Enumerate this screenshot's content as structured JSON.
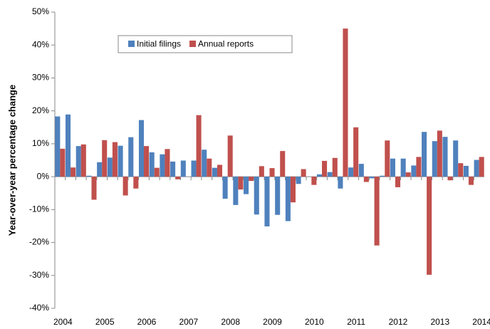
{
  "chart_data": {
    "type": "bar",
    "y_label": "Year-over-year percentage change",
    "categories": [
      "2004",
      null,
      null,
      null,
      "2005",
      null,
      null,
      null,
      "2006",
      null,
      null,
      null,
      "2007",
      null,
      null,
      null,
      "2008",
      null,
      null,
      null,
      "2009",
      null,
      null,
      null,
      "2010",
      null,
      null,
      null,
      "2011",
      null,
      null,
      null,
      "2012",
      null,
      null,
      null,
      "2013",
      null,
      null,
      null,
      "2014"
    ],
    "series": [
      {
        "name": "Initial filings",
        "color": "#4f81bd",
        "values": [
          18.3,
          18.9,
          9.3,
          0.3,
          4.4,
          5.8,
          9.4,
          12,
          17.2,
          7.4,
          6.8,
          4.6,
          4.9,
          4.9,
          8.2,
          2.7,
          -6.7,
          -8.6,
          -5.3,
          -11.5,
          -15.1,
          -11.6,
          -13.5,
          -2.2,
          0,
          0.7,
          1.4,
          -3.6,
          2.8,
          3.9,
          -0.5,
          0.3,
          5.5,
          5.5,
          3.4,
          13.6,
          10.8,
          12.1,
          11,
          3.3,
          5.1
        ]
      },
      {
        "name": "Annual reports",
        "color": "#c0504d",
        "values": [
          8.5,
          2.8,
          9.8,
          -7,
          11.1,
          10.5,
          -5.7,
          -3.6,
          9.3,
          2.7,
          8.4,
          -0.8,
          0,
          18.7,
          5.5,
          3.6,
          12.5,
          -3.9,
          -1.3,
          3.2,
          2.6,
          7.8,
          -7.8,
          2.3,
          -2.5,
          4.8,
          5.7,
          45,
          15,
          -1.6,
          -20.9,
          11,
          -3.2,
          1.3,
          6,
          -29.8,
          14,
          -1.1,
          4.1,
          -2.5,
          6
        ]
      }
    ],
    "ylim": [
      -40,
      50
    ],
    "yticks": [
      {
        "value": -40,
        "label": "-40%"
      },
      {
        "value": -30,
        "label": "-30%"
      },
      {
        "value": -20,
        "label": "-20%"
      },
      {
        "value": -10,
        "label": "-10%"
      },
      {
        "value": 0,
        "label": "0%"
      },
      {
        "value": 10,
        "label": "10%"
      },
      {
        "value": 20,
        "label": "20%"
      },
      {
        "value": 30,
        "label": "30%"
      },
      {
        "value": 40,
        "label": "40%"
      },
      {
        "value": 50,
        "label": "50%"
      }
    ],
    "grid": false,
    "legend": "top-left"
  }
}
